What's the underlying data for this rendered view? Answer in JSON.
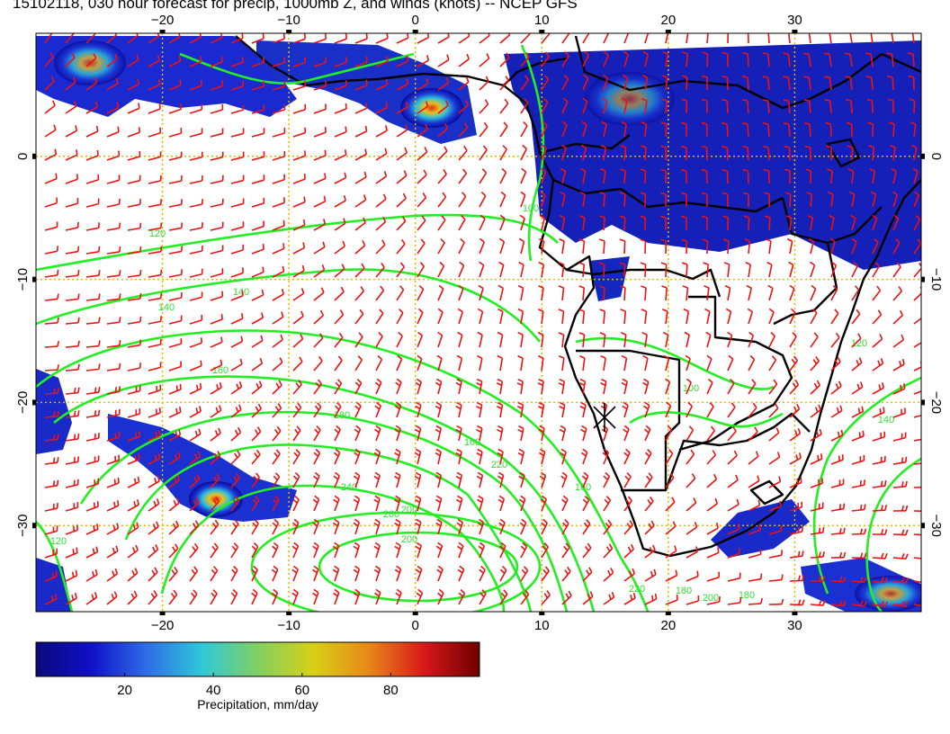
{
  "title": "15102118, 030 hour forecast for precip, 1000mb Z, and winds (knots) -- NCEP GFS",
  "map": {
    "lon_range": [
      -30,
      40
    ],
    "lat_range": [
      -37,
      10
    ],
    "lon_ticks": [
      "−20",
      "−10",
      "0",
      "10",
      "20",
      "30"
    ],
    "lat_ticks": [
      "0",
      "−10",
      "−20",
      "−30"
    ],
    "contour_labels": [
      "120",
      "140",
      "140",
      "160",
      "180",
      "200",
      "220",
      "240",
      "260",
      "200",
      "160",
      "180",
      "100",
      "140",
      "120",
      "100",
      "160",
      "220",
      "200",
      "180",
      "120"
    ],
    "colors": {
      "contour": "#22ee22",
      "barb": "#ee1111",
      "grid": "#e0b800",
      "coast": "#000000"
    }
  },
  "colorbar": {
    "label": "Precipitation, mm/day",
    "range": [
      0,
      100
    ],
    "ticks": [
      "20",
      "40",
      "60",
      "80"
    ],
    "tick_values": [
      20,
      40,
      60,
      80
    ],
    "colors": [
      "#0a0a7a",
      "#1010c8",
      "#2e6ee6",
      "#30c8d8",
      "#80d060",
      "#d8d018",
      "#e88818",
      "#d81818",
      "#6e0000"
    ]
  }
}
